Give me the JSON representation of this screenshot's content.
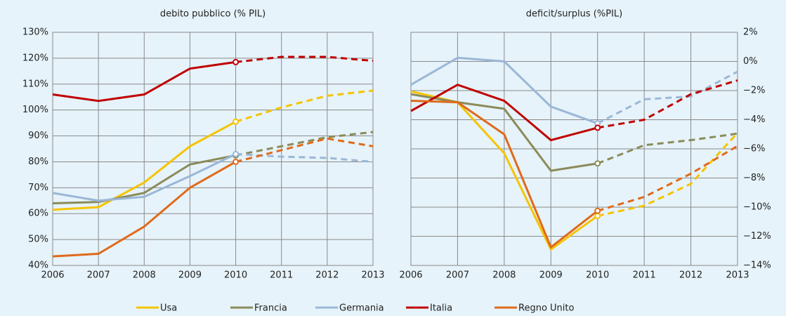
{
  "chart_data": [
    {
      "type": "line",
      "title": "debito pubblico (% PIL)",
      "yaxis_side": "left",
      "dashed_from": 2010,
      "grid": true,
      "x": [
        2006,
        2007,
        2008,
        2009,
        2010,
        2011,
        2012,
        2013
      ],
      "xlim": [
        2006,
        2013
      ],
      "xticks": [
        2006,
        2007,
        2008,
        2009,
        2010,
        2011,
        2012,
        2013
      ],
      "ylim": [
        40,
        130
      ],
      "yticks": [
        {
          "value": 40,
          "label": "40%"
        },
        {
          "value": 50,
          "label": "50%"
        },
        {
          "value": 60,
          "label": "60%"
        },
        {
          "value": 70,
          "label": "70%"
        },
        {
          "value": 80,
          "label": "80%"
        },
        {
          "value": 90,
          "label": "90%"
        },
        {
          "value": 100,
          "label": "100%"
        },
        {
          "value": 110,
          "label": "110%"
        },
        {
          "value": 120,
          "label": "120%"
        },
        {
          "value": 130,
          "label": "130%"
        }
      ],
      "series": [
        {
          "color": "#f5c400",
          "values": [
            61.5,
            62.5,
            72,
            86,
            95.5,
            101,
            105.5,
            107.5
          ]
        },
        {
          "color": "#8b8b5a",
          "values": [
            64,
            64.5,
            68,
            79,
            82.5,
            86,
            89.5,
            91.5
          ]
        },
        {
          "color": "#9bb7d6",
          "values": [
            68,
            65,
            66.5,
            74.5,
            83,
            82,
            81.5,
            80
          ]
        },
        {
          "color": "#c00000",
          "values": [
            106,
            103.5,
            106,
            116,
            118.5,
            120.5,
            120.5,
            119
          ]
        },
        {
          "color": "#e06a1a",
          "values": [
            43.5,
            44.5,
            55,
            70,
            80,
            84.5,
            89,
            86
          ]
        }
      ]
    },
    {
      "type": "line",
      "title": "deficit/surplus (%PIL)",
      "yaxis_side": "right",
      "dashed_from": 2010,
      "grid": true,
      "x": [
        2006,
        2007,
        2008,
        2009,
        2010,
        2011,
        2012,
        2013
      ],
      "xlim": [
        2006,
        2013
      ],
      "xticks": [
        2006,
        2007,
        2008,
        2009,
        2010,
        2011,
        2012,
        2013
      ],
      "ylim": [
        -14,
        2
      ],
      "yticks": [
        {
          "value": -14,
          "label": "−14%"
        },
        {
          "value": -12,
          "label": "−12%"
        },
        {
          "value": -10,
          "label": "−10%"
        },
        {
          "value": -8,
          "label": "−8%"
        },
        {
          "value": -6,
          "label": "−6%"
        },
        {
          "value": -4,
          "label": "−4%"
        },
        {
          "value": -2,
          "label": "−2%"
        },
        {
          "value": 0,
          "label": "0%"
        },
        {
          "value": 2,
          "label": "2%"
        }
      ],
      "series": [
        {
          "color": "#f5c400",
          "values": [
            -2.05,
            -2.8,
            -6.3,
            -12.9,
            -10.6,
            -9.9,
            -8.4,
            -4.9
          ]
        },
        {
          "color": "#8b8b5a",
          "values": [
            -2.25,
            -2.8,
            -3.25,
            -7.5,
            -7.0,
            -5.75,
            -5.4,
            -4.95
          ]
        },
        {
          "color": "#9bb7d6",
          "values": [
            -1.6,
            0.25,
            0,
            -3.1,
            -4.25,
            -2.6,
            -2.4,
            -0.7
          ]
        },
        {
          "color": "#c00000",
          "values": [
            -3.4,
            -1.6,
            -2.7,
            -5.4,
            -4.55,
            -4.0,
            -2.25,
            -1.3
          ]
        },
        {
          "color": "#e06a1a",
          "values": [
            -2.7,
            -2.8,
            -5.0,
            -12.75,
            -10.25,
            -9.3,
            -7.7,
            -5.8
          ]
        }
      ]
    }
  ],
  "legend": {
    "entries": [
      {
        "name": "Usa",
        "color": "#f5c400"
      },
      {
        "name": "Francia",
        "color": "#8b8b5a"
      },
      {
        "name": "Germania",
        "color": "#9bb7d6"
      },
      {
        "name": "Italia",
        "color": "#c00000"
      },
      {
        "name": "Regno Unito",
        "color": "#e06a1a"
      }
    ]
  }
}
